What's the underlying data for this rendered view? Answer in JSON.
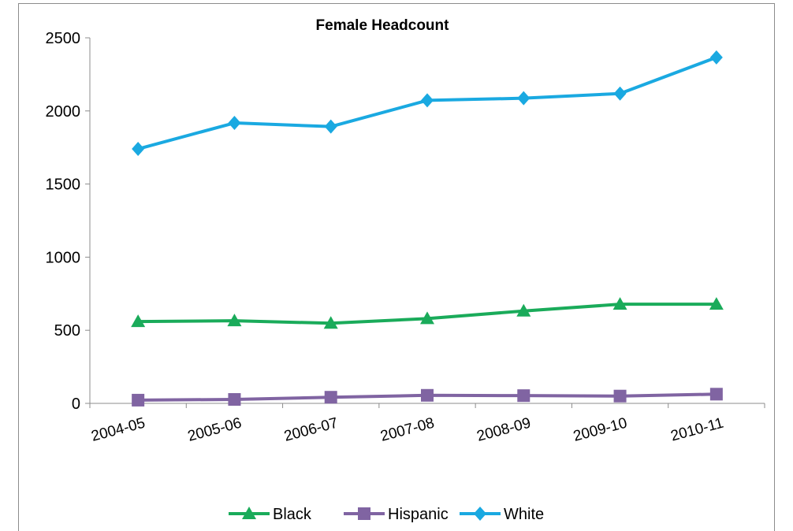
{
  "chart_data": {
    "type": "line",
    "title": "Female Headcount",
    "xlabel": "",
    "ylabel": "",
    "categories": [
      "2004-05",
      "2005-06",
      "2006-07",
      "2007-08",
      "2008-09",
      "2009-10",
      "2010-11"
    ],
    "yticks": [
      0,
      500,
      1000,
      1500,
      2000,
      2500
    ],
    "ylim": [
      0,
      2500
    ],
    "grid": false,
    "legend_position": "bottom",
    "series": [
      {
        "name": "Black",
        "color": "#1aab5a",
        "marker": "triangle",
        "values": [
          560,
          565,
          548,
          580,
          632,
          678,
          678
        ]
      },
      {
        "name": "Hispanic",
        "color": "#8064a2",
        "marker": "square",
        "values": [
          22,
          27,
          42,
          55,
          53,
          50,
          63
        ]
      },
      {
        "name": "White",
        "color": "#1aa9e1",
        "marker": "diamond",
        "values": [
          1740,
          1918,
          1893,
          2072,
          2087,
          2119,
          2366
        ]
      }
    ]
  }
}
